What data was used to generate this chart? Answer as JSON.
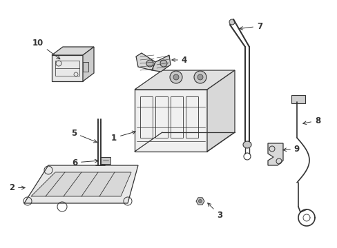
{
  "background_color": "#ffffff",
  "line_color": "#333333",
  "figsize": [
    4.89,
    3.6
  ],
  "dpi": 100,
  "label_fontsize": 8.5
}
